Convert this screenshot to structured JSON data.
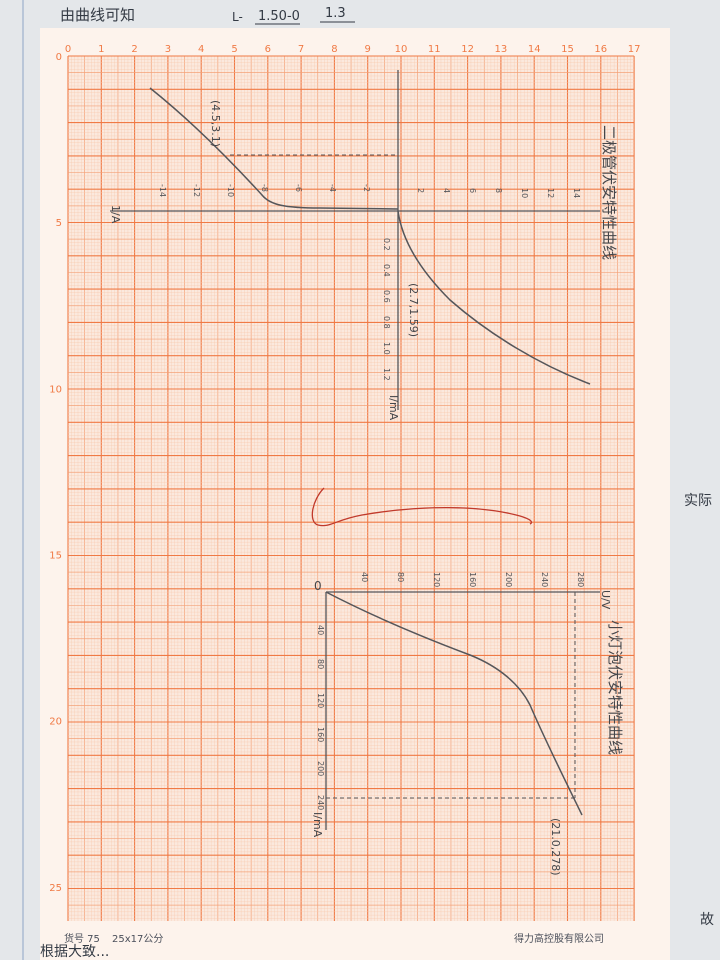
{
  "colors": {
    "notebook_paper": "#e7eaec",
    "graph_paper": "#fbe8dc",
    "grid_major": "#f07a45",
    "grid_mid": "#f4a278",
    "grid_minor": "#f8c9ae",
    "pencil": "#55565a",
    "red_pen": "#c0392b",
    "ink": "#333a44"
  },
  "top_note": {
    "line1": "由曲线可知",
    "line2_prefix": "L-",
    "fraction_num": "1.50-0",
    "fraction_num2": "1.3"
  },
  "grid": {
    "top_ruler": [
      "0",
      "1",
      "2",
      "3",
      "4",
      "5",
      "6",
      "7",
      "8",
      "9",
      "10",
      "11",
      "12",
      "13",
      "14",
      "15",
      "16",
      "17"
    ],
    "left_ruler": [
      {
        "label": "0"
      },
      {
        "label": "5"
      },
      {
        "label": "10"
      },
      {
        "label": "15"
      },
      {
        "label": "20"
      },
      {
        "label": "25"
      }
    ],
    "footer_left": "货号 75",
    "footer_size": "25x17公分",
    "footer_company": "得力高控股有限公司"
  },
  "chart_upper": {
    "annotation_left": "(4.5,3.1)",
    "annotation_right": "(2.7,1.59)",
    "axis_label_left": "1/A",
    "axis_label_bottom": "I/mA",
    "vertical_title": "二极管伏安特性曲线",
    "x_ticks_neg": [
      "-14",
      "-12",
      "-10",
      "-8",
      "-6",
      "-4",
      "-2"
    ],
    "x_ticks_pos": [
      "2",
      "4",
      "6",
      "8",
      "10",
      "12",
      "14"
    ],
    "y_ticks": [
      "0.2",
      "0.4",
      "0.6",
      "0.8",
      "1.0",
      "1.2"
    ]
  },
  "chart_lower": {
    "origin": "0",
    "x_ticks": [
      "40",
      "80",
      "120",
      "160",
      "200",
      "240",
      "280"
    ],
    "y_ticks": [
      "40",
      "80",
      "120",
      "160",
      "200",
      "240"
    ],
    "axis_label_right": "U/V",
    "axis_label_bottom": "I/mA",
    "vertical_title": "小灯泡伏安特性曲线",
    "annotation": "(21.0,278)"
  },
  "side_notes": {
    "right_mid": "实际",
    "right_bottom": "故"
  },
  "bottom_note": "根据大致..."
}
